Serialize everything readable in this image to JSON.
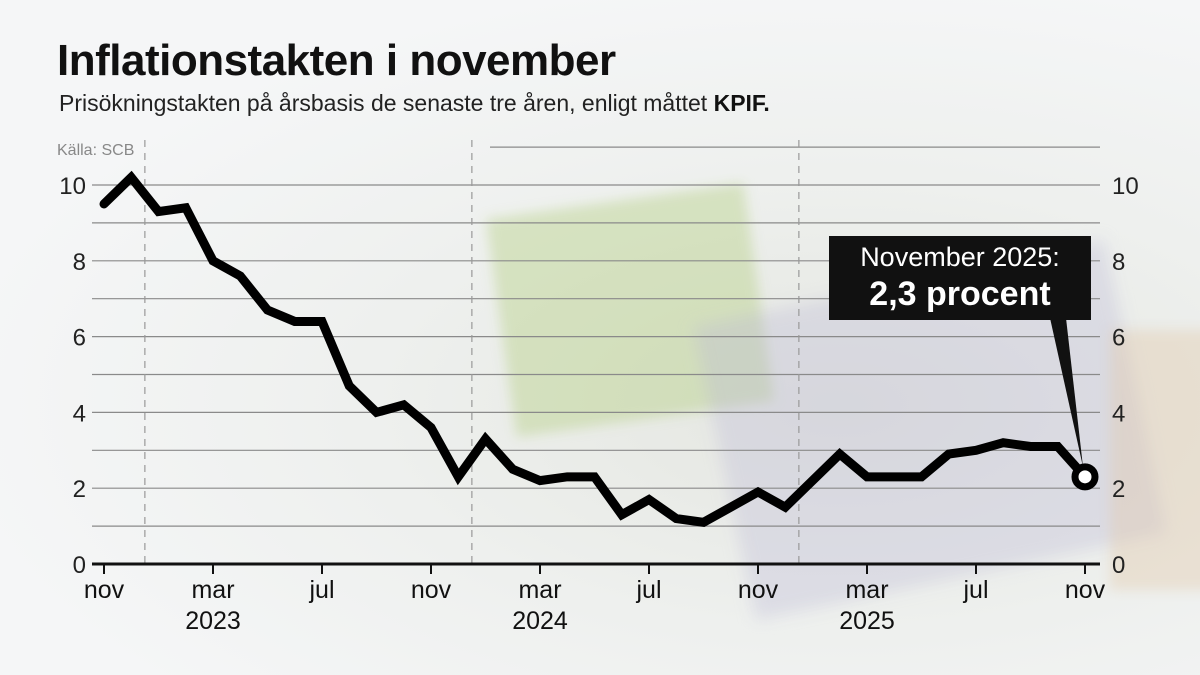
{
  "title": "Inflationstakten i november",
  "subtitle": "Prisökningstakten på årsbasis de senaste tre åren, enligt måttet",
  "subtitle_bold": "KPIF.",
  "source": "Källa: SCB",
  "annotation": {
    "line1": "November 2025:",
    "line2": "2,3 procent"
  },
  "colors": {
    "line": "#000000",
    "grid": "#8a8a8a",
    "annotation_bg": "#111111"
  },
  "chart_data": {
    "type": "line",
    "title": "Inflationstakten i november",
    "xlabel": "",
    "ylabel": "",
    "ylim": [
      0,
      11
    ],
    "yticks": [
      0,
      2,
      4,
      6,
      8,
      10
    ],
    "grid": true,
    "x_tick_labels": [
      "nov",
      "mar",
      "jul",
      "nov",
      "mar",
      "jul",
      "nov",
      "mar",
      "jul",
      "nov"
    ],
    "x_tick_months": [
      0,
      4,
      8,
      12,
      16,
      20,
      24,
      28,
      32,
      36
    ],
    "year_labels": [
      {
        "label": "2023",
        "month": 4
      },
      {
        "label": "2024",
        "month": 16
      },
      {
        "label": "2025",
        "month": 28
      }
    ],
    "year_boundaries_months": [
      1.5,
      13.5,
      25.5
    ],
    "x": [
      "2022-11",
      "2022-12",
      "2023-01",
      "2023-02",
      "2023-03",
      "2023-04",
      "2023-05",
      "2023-06",
      "2023-07",
      "2023-08",
      "2023-09",
      "2023-10",
      "2023-11",
      "2023-12",
      "2024-01",
      "2024-02",
      "2024-03",
      "2024-04",
      "2024-05",
      "2024-06",
      "2024-07",
      "2024-08",
      "2024-09",
      "2024-10",
      "2024-11",
      "2024-12",
      "2025-01",
      "2025-02",
      "2025-03",
      "2025-04",
      "2025-05",
      "2025-06",
      "2025-07",
      "2025-08",
      "2025-09",
      "2025-10",
      "2025-11"
    ],
    "values": [
      9.5,
      10.2,
      9.3,
      9.4,
      8.0,
      7.6,
      6.7,
      6.4,
      6.4,
      4.7,
      4.0,
      4.2,
      3.6,
      2.3,
      3.3,
      2.5,
      2.2,
      2.3,
      2.3,
      1.3,
      1.7,
      1.2,
      1.1,
      1.5,
      1.9,
      1.5,
      2.2,
      2.9,
      2.3,
      2.3,
      2.3,
      2.9,
      3.0,
      3.2,
      3.1,
      3.1,
      2.3
    ],
    "highlight": {
      "x": "2025-11",
      "value": 2.3
    }
  }
}
